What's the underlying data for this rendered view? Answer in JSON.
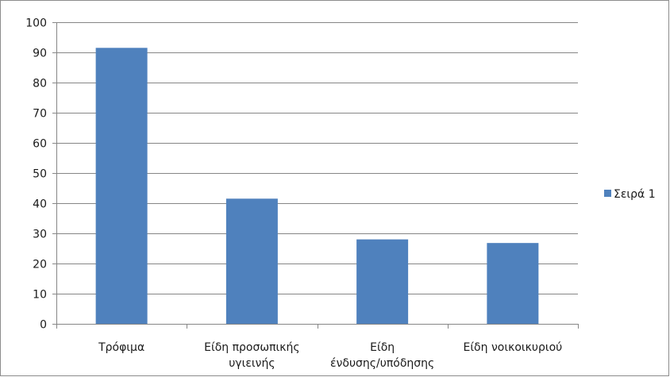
{
  "chart_data": {
    "type": "bar",
    "categories": [
      [
        "Τρόφιμα"
      ],
      [
        "Είδη προσωπικής",
        "υγιεινής"
      ],
      [
        "Είδη",
        "ένδυσης/υπόδησης"
      ],
      [
        "Είδη νοικοικυριού"
      ]
    ],
    "series": [
      {
        "name": "Σειρά 1",
        "values": [
          91.5,
          41.5,
          28,
          26.8
        ]
      }
    ],
    "ylim": [
      0,
      100
    ],
    "yticks": [
      0,
      10,
      20,
      30,
      40,
      50,
      60,
      70,
      80,
      90,
      100
    ],
    "grid": true,
    "legend": "right",
    "colors": {
      "bar": "#4f81bd",
      "grid": "#868686",
      "axis": "#868686"
    }
  }
}
